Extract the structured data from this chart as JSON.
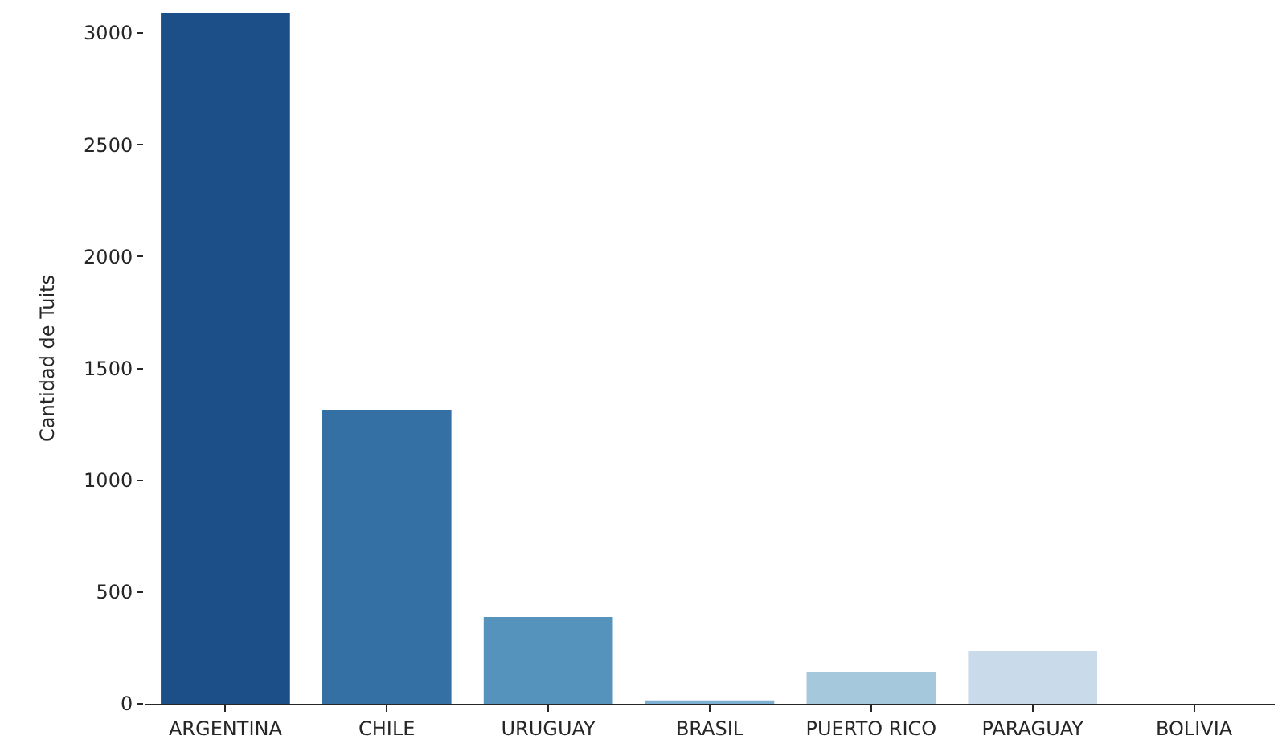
{
  "chart_data": {
    "type": "bar",
    "ylabel": "Cantidad de Tuits",
    "categories": [
      "ARGENTINA",
      "CHILE",
      "URUGUAY",
      "BRASIL",
      "PUERTO RICO",
      "PARAGUAY",
      "BOLIVIA"
    ],
    "values": [
      3090,
      1315,
      388,
      15,
      144,
      237,
      null
    ],
    "colors": [
      "#1c4f88",
      "#3470a3",
      "#5592bc",
      "#7db0d2",
      "#a6c8dc",
      "#c9daea",
      "#e3edf6"
    ],
    "ylim": [
      0,
      3090
    ],
    "yticks": [
      0,
      500,
      1000,
      1500,
      2000,
      2500,
      3000
    ]
  }
}
